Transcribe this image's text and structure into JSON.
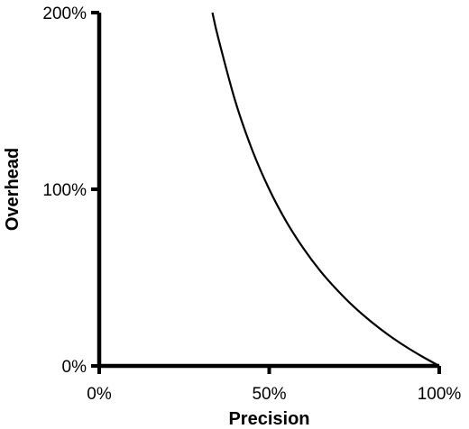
{
  "chart_data": {
    "type": "line",
    "title": "",
    "xlabel": "Precision",
    "ylabel": "Overhead",
    "xlim": [
      0,
      100
    ],
    "ylim": [
      0,
      200
    ],
    "x_ticks": [
      {
        "value": 0,
        "label": "0%"
      },
      {
        "value": 50,
        "label": "50%"
      },
      {
        "value": 100,
        "label": "100%"
      }
    ],
    "y_ticks": [
      {
        "value": 0,
        "label": "0%"
      },
      {
        "value": 100,
        "label": "100%"
      },
      {
        "value": 200,
        "label": "200%"
      }
    ],
    "grid": false,
    "legend": "none",
    "series": [
      {
        "x": [
          33.3,
          35,
          40,
          45,
          50,
          55,
          60,
          65,
          70,
          75,
          80,
          85,
          90,
          95,
          100
        ],
        "y": [
          200,
          185.7,
          150,
          122.2,
          100,
          81.8,
          66.7,
          53.8,
          42.9,
          33.3,
          25,
          17.6,
          11.1,
          5.3,
          0
        ],
        "color": "#000000"
      }
    ],
    "colors": {
      "axis": "#000000",
      "line": "#000000",
      "background": "#ffffff"
    }
  }
}
